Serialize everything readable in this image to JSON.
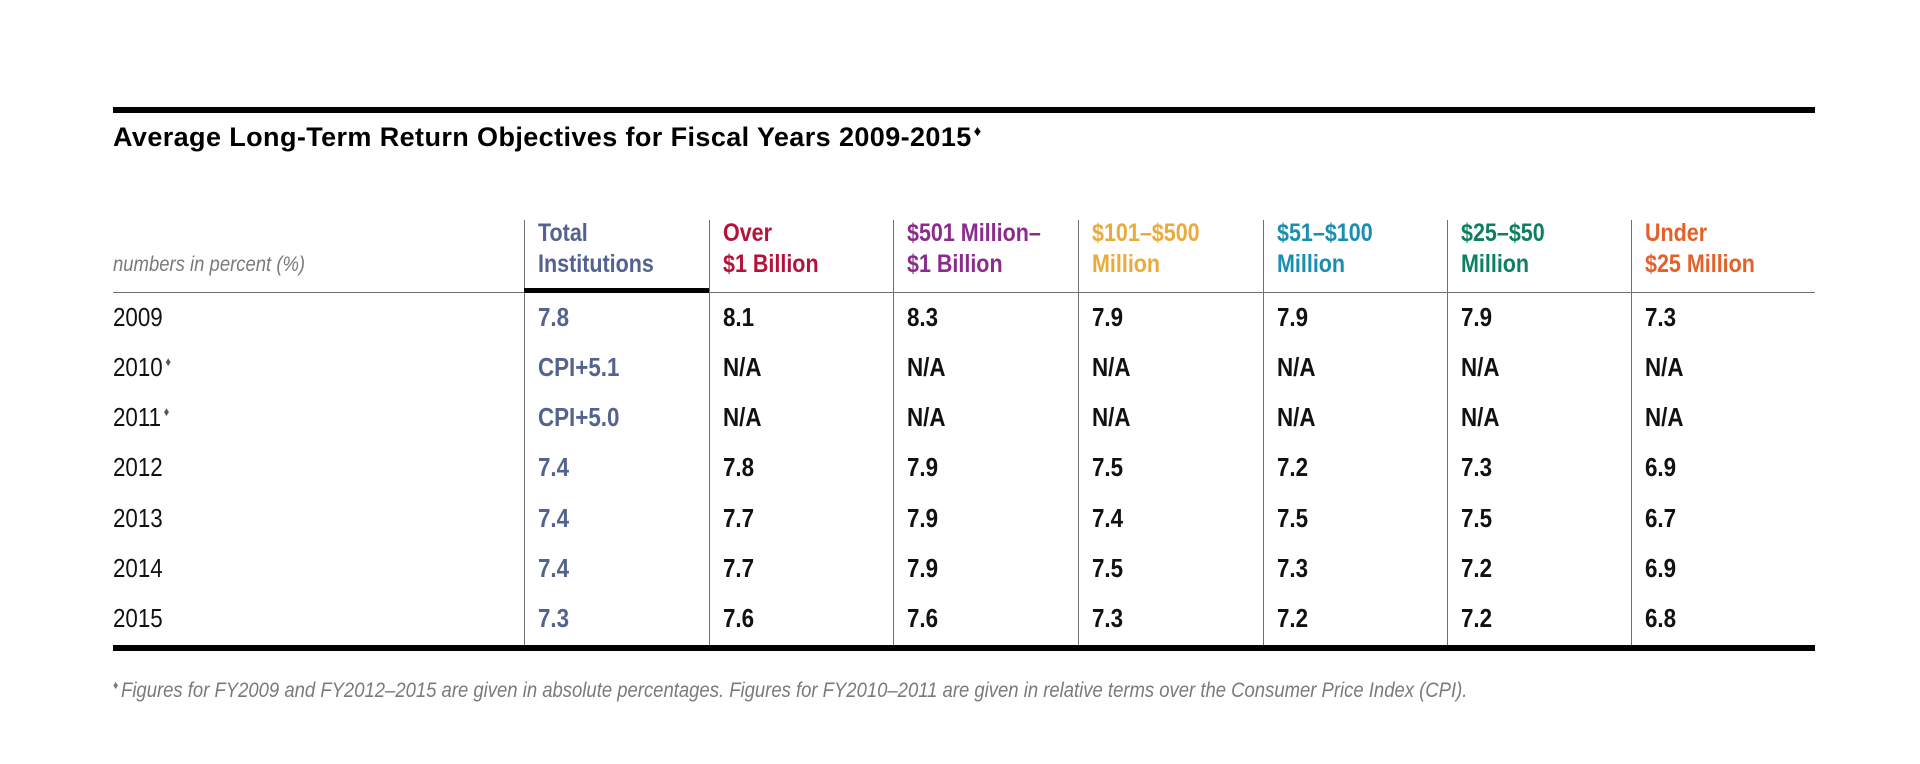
{
  "title": "Average Long-Term Return Objectives for Fiscal Years 2009-2015",
  "marker": "♦",
  "units_label": "numbers in percent (%)",
  "columns": [
    {
      "line1": "Total",
      "line2": "Institutions",
      "color": "#53628f"
    },
    {
      "line1": "Over",
      "line2": "$1 Billion",
      "color": "#b5123a"
    },
    {
      "line1": "$501 Million–",
      "line2": "$1 Billion",
      "color": "#8b2c8c"
    },
    {
      "line1": "$101–$500",
      "line2": "Million",
      "color": "#e8ab3c"
    },
    {
      "line1": "$51–$100",
      "line2": "Million",
      "color": "#1a8eb0"
    },
    {
      "line1": "$25–$50",
      "line2": "Million",
      "color": "#0d8063"
    },
    {
      "line1": "Under",
      "line2": "$25 Million",
      "color": "#e3612a"
    }
  ],
  "rows": [
    {
      "year": "2009",
      "marked": false,
      "values": [
        "7.8",
        "8.1",
        "8.3",
        "7.9",
        "7.9",
        "7.9",
        "7.3"
      ]
    },
    {
      "year": "2010",
      "marked": true,
      "values": [
        "CPI+5.1",
        "N/A",
        "N/A",
        "N/A",
        "N/A",
        "N/A",
        "N/A"
      ]
    },
    {
      "year": "2011",
      "marked": true,
      "values": [
        "CPI+5.0",
        "N/A",
        "N/A",
        "N/A",
        "N/A",
        "N/A",
        "N/A"
      ]
    },
    {
      "year": "2012",
      "marked": false,
      "values": [
        "7.4",
        "7.8",
        "7.9",
        "7.5",
        "7.2",
        "7.3",
        "6.9"
      ]
    },
    {
      "year": "2013",
      "marked": false,
      "values": [
        "7.4",
        "7.7",
        "7.9",
        "7.4",
        "7.5",
        "7.5",
        "6.7"
      ]
    },
    {
      "year": "2014",
      "marked": false,
      "values": [
        "7.4",
        "7.7",
        "7.9",
        "7.5",
        "7.3",
        "7.2",
        "6.9"
      ]
    },
    {
      "year": "2015",
      "marked": false,
      "values": [
        "7.3",
        "7.6",
        "7.6",
        "7.3",
        "7.2",
        "7.2",
        "6.8"
      ]
    }
  ],
  "footnote": "Figures for FY2009 and FY2012–2015 are given in absolute percentages. Figures for FY2010–2011 are given in relative terms over the Consumer Price Index (CPI)."
}
